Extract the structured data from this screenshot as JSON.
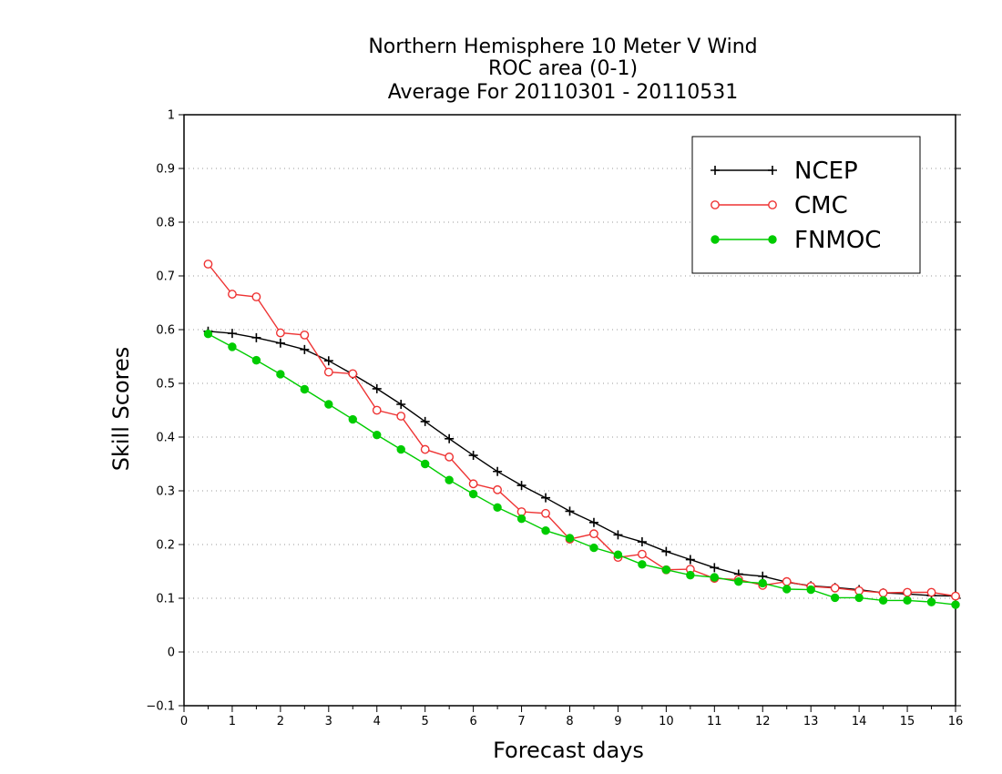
{
  "chart_data": {
    "type": "line",
    "title_lines": [
      "Northern Hemisphere 10 Meter V Wind",
      "ROC area (0-1)",
      "Average For 20110301 - 20110531"
    ],
    "xlabel": "Forecast days",
    "ylabel": "Skill Scores",
    "xlim": [
      0,
      16
    ],
    "ylim": [
      -0.1,
      1
    ],
    "x_ticks": [
      0,
      1,
      2,
      3,
      4,
      5,
      6,
      7,
      8,
      9,
      10,
      11,
      12,
      13,
      14,
      15,
      16
    ],
    "x_tick_labels": [
      "0",
      "1",
      "2",
      "3",
      "4",
      "5",
      "6",
      "7",
      "8",
      "9",
      "10",
      "11",
      "12",
      "13",
      "14",
      "15",
      "16"
    ],
    "y_ticks": [
      -0.1,
      0,
      0.1,
      0.2,
      0.3,
      0.4,
      0.5,
      0.6,
      0.7,
      0.8,
      0.9,
      1
    ],
    "y_tick_labels": [
      "−0.1",
      "0",
      "0.1",
      "0.2",
      "0.3",
      "0.4",
      "0.5",
      "0.6",
      "0.7",
      "0.8",
      "0.9",
      "1"
    ],
    "grid": "horizontal dotted",
    "legend_position": "top-right",
    "x": [
      0.5,
      1,
      1.5,
      2,
      2.5,
      3,
      3.5,
      4,
      4.5,
      5,
      5.5,
      6,
      6.5,
      7,
      7.5,
      8,
      8.5,
      9,
      9.5,
      10,
      10.5,
      11,
      11.5,
      12,
      12.5,
      13,
      13.5,
      14,
      14.5,
      15,
      15.5,
      16
    ],
    "series": [
      {
        "name": "NCEP",
        "color": "#000000",
        "marker": "plus",
        "values": [
          0.597,
          0.593,
          0.585,
          0.575,
          0.563,
          0.542,
          0.517,
          0.49,
          0.461,
          0.429,
          0.397,
          0.366,
          0.336,
          0.31,
          0.287,
          0.262,
          0.241,
          0.218,
          0.205,
          0.187,
          0.172,
          0.157,
          0.145,
          0.141,
          0.13,
          0.123,
          0.12,
          0.116,
          0.11,
          0.108,
          0.105,
          0.104
        ]
      },
      {
        "name": "CMC",
        "color": "#ee3333",
        "marker": "open-circle",
        "values": [
          0.722,
          0.666,
          0.661,
          0.594,
          0.59,
          0.521,
          0.518,
          0.45,
          0.439,
          0.377,
          0.363,
          0.313,
          0.302,
          0.261,
          0.258,
          0.21,
          0.22,
          0.176,
          0.182,
          0.153,
          0.154,
          0.137,
          0.135,
          0.124,
          0.131,
          0.122,
          0.119,
          0.114,
          0.11,
          0.111,
          0.111,
          0.104
        ]
      },
      {
        "name": "FNMOC",
        "color": "#00cc00",
        "marker": "filled-circle",
        "values": [
          0.592,
          0.568,
          0.543,
          0.517,
          0.489,
          0.461,
          0.433,
          0.404,
          0.377,
          0.35,
          0.32,
          0.294,
          0.269,
          0.248,
          0.226,
          0.212,
          0.194,
          0.181,
          0.163,
          0.153,
          0.143,
          0.139,
          0.131,
          0.128,
          0.117,
          0.116,
          0.101,
          0.101,
          0.096,
          0.096,
          0.093,
          0.088
        ]
      }
    ]
  }
}
